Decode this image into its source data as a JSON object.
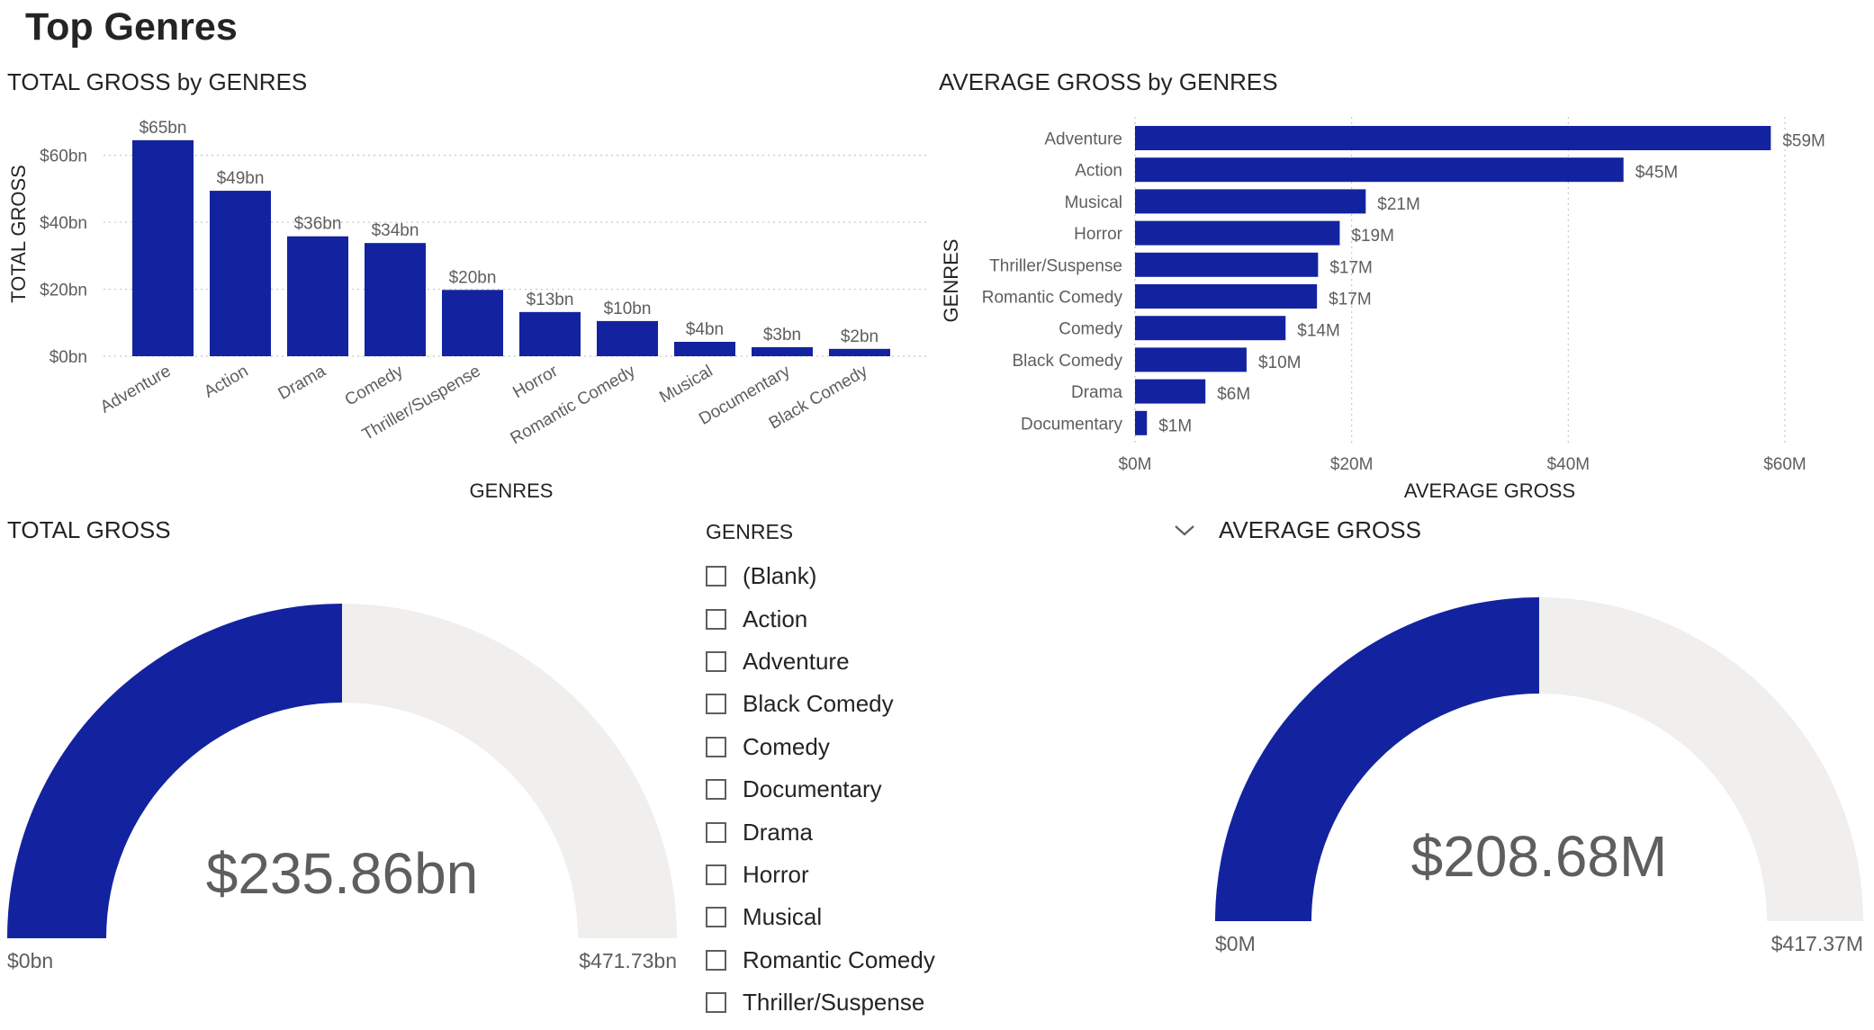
{
  "page": {
    "title": "Top Genres"
  },
  "colors": {
    "bar": "#13239f",
    "gauge_fill": "#13239f",
    "gauge_track": "#f0efee",
    "text": "#252423",
    "muted": "#605e5c",
    "grid": "#c8c6c4"
  },
  "icons": {
    "collapse": "chevron-down-icon",
    "checkbox": "checkbox-icon"
  },
  "total_chart": {
    "title": "TOTAL GROSS by GENRES"
  },
  "avg_chart": {
    "title": "AVERAGE GROSS by GENRES"
  },
  "total_gauge": {
    "title": "TOTAL GROSS",
    "value_label": "$235.86bn",
    "min_label": "$0bn",
    "max_label": "$471.73bn"
  },
  "avg_gauge": {
    "title": "AVERAGE GROSS",
    "value_label": "$208.68M",
    "min_label": "$0M",
    "max_label": "$417.37M"
  },
  "slicer": {
    "header": "GENRES",
    "items": [
      "(Blank)",
      "Action",
      "Adventure",
      "Black Comedy",
      "Comedy",
      "Documentary",
      "Drama",
      "Horror",
      "Musical",
      "Romantic Comedy",
      "Thriller/Suspense"
    ]
  },
  "chart_data": [
    {
      "type": "bar",
      "title": "TOTAL GROSS by GENRES",
      "xlabel": "GENRES",
      "ylabel": "TOTAL GROSS",
      "categories": [
        "Adventure",
        "Action",
        "Drama",
        "Comedy",
        "Thriller/Suspense",
        "Horror",
        "Romantic Comedy",
        "Musical",
        "Documentary",
        "Black Comedy"
      ],
      "values": [
        64.5,
        49.4,
        35.8,
        33.8,
        19.8,
        13.2,
        10.5,
        4.3,
        2.7,
        2.2
      ],
      "data_labels": [
        "$65bn",
        "$49bn",
        "$36bn",
        "$34bn",
        "$20bn",
        "$13bn",
        "$10bn",
        "$4bn",
        "$3bn",
        "$2bn"
      ],
      "y_ticks": [
        0,
        20,
        40,
        60
      ],
      "y_tick_labels": [
        "$0bn",
        "$20bn",
        "$40bn",
        "$60bn"
      ],
      "ylim": [
        0,
        65
      ],
      "grid": true
    },
    {
      "type": "bar",
      "orientation": "horizontal",
      "title": "AVERAGE GROSS by GENRES",
      "xlabel": "AVERAGE GROSS",
      "ylabel": "GENRES",
      "categories": [
        "Adventure",
        "Action",
        "Musical",
        "Horror",
        "Thriller/Suspense",
        "Romantic Comedy",
        "Comedy",
        "Black Comedy",
        "Drama",
        "Documentary"
      ],
      "values": [
        58.7,
        45.1,
        21.3,
        18.9,
        16.9,
        16.8,
        13.9,
        10.3,
        6.5,
        1.1
      ],
      "data_labels": [
        "$59M",
        "$45M",
        "$21M",
        "$19M",
        "$17M",
        "$17M",
        "$14M",
        "$10M",
        "$6M",
        "$1M"
      ],
      "x_ticks": [
        0,
        20,
        40,
        60
      ],
      "x_tick_labels": [
        "$0M",
        "$20M",
        "$40M",
        "$60M"
      ],
      "xlim": [
        0,
        60
      ],
      "grid": true
    },
    {
      "type": "gauge",
      "title": "TOTAL GROSS",
      "value": 235.86,
      "min": 0,
      "max": 471.73,
      "unit": "bn"
    },
    {
      "type": "gauge",
      "title": "AVERAGE GROSS",
      "value": 208.68,
      "min": 0,
      "max": 417.37,
      "unit": "M"
    }
  ]
}
